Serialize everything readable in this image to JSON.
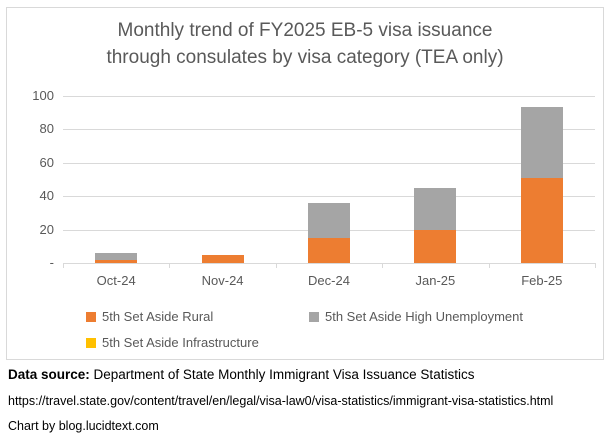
{
  "title": {
    "line1": "Monthly trend of FY2025 EB-5 visa issuance",
    "line2": "through consulates by visa category (TEA only)"
  },
  "chart_data": {
    "type": "bar",
    "stacked": true,
    "title": "Monthly trend of FY2025 EB-5 visa issuance through consulates by visa category (TEA only)",
    "categories": [
      "Oct-24",
      "Nov-24",
      "Dec-24",
      "Jan-25",
      "Feb-25"
    ],
    "series": [
      {
        "name": "5th Set Aside Rural",
        "color": "#ED7D31",
        "values": [
          2,
          5,
          15,
          20,
          51
        ]
      },
      {
        "name": "5th Set Aside High Unemployment",
        "color": "#A5A5A5",
        "values": [
          4,
          0,
          21,
          25,
          42
        ]
      },
      {
        "name": "5th Set Aside Infrastructure",
        "color": "#FFC000",
        "values": [
          0,
          0,
          0,
          0,
          0
        ]
      }
    ],
    "totals": [
      6,
      5,
      36,
      45,
      93
    ],
    "xlabel": "",
    "ylabel": "",
    "ylim": [
      0,
      100
    ],
    "ytick_interval": 20,
    "ytick_labels": [
      "-",
      "20",
      "40",
      "60",
      "80",
      "100"
    ],
    "grid": true,
    "legend_position": "bottom"
  },
  "colors": {
    "rural": "#ED7D31",
    "high_unemployment": "#A5A5A5",
    "infrastructure": "#FFC000",
    "gridline": "#D9D9D9",
    "axis_text": "#595959",
    "title_text": "#595959",
    "frame_border": "#D9D9D9",
    "footer_text": "#000000"
  },
  "footer": {
    "source_label": "Data source:",
    "source_text": " Department of State Monthly Immigrant Visa Issuance Statistics",
    "url": "https://travel.state.gov/content/travel/en/legal/visa-law0/visa-statistics/immigrant-visa-statistics.html",
    "credit": "Chart by blog.lucidtext.com"
  }
}
